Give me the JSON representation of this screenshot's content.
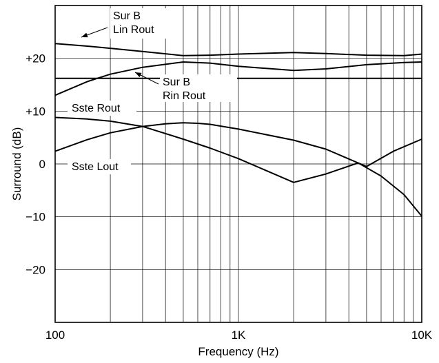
{
  "chart_data": {
    "type": "line",
    "xlabel": "Frequency (Hz)",
    "ylabel": "Surround (dB)",
    "x_scale": "log",
    "xlim": [
      100,
      10000
    ],
    "ylim": [
      -30,
      30
    ],
    "x_ticks": [
      {
        "value": 100,
        "label": "100"
      },
      {
        "value": 1000,
        "label": "1K"
      },
      {
        "value": 10000,
        "label": "10K"
      }
    ],
    "y_ticks": [
      {
        "value": 20,
        "label": "+20"
      },
      {
        "value": 10,
        "label": "+10"
      },
      {
        "value": 0,
        "label": "0"
      },
      {
        "value": -10,
        "label": "−10"
      },
      {
        "value": -20,
        "label": "−20"
      }
    ],
    "grid": true,
    "series": [
      {
        "name": "Sur B Lin Rout",
        "x": [
          100,
          150,
          200,
          300,
          500,
          700,
          1000,
          2000,
          3000,
          5000,
          8000,
          10000
        ],
        "y": [
          22.8,
          22.3,
          21.9,
          21.3,
          20.5,
          20.6,
          20.8,
          21.1,
          20.9,
          20.6,
          20.5,
          20.8
        ]
      },
      {
        "name": "Sur B Rin Rout",
        "x": [
          100,
          150,
          200,
          300,
          500,
          700,
          1000,
          2000,
          3000,
          5000,
          8000,
          10000
        ],
        "y": [
          13.0,
          15.6,
          17.0,
          18.3,
          19.3,
          19.1,
          18.5,
          17.7,
          18.0,
          18.8,
          19.2,
          19.3
        ]
      },
      {
        "name": "",
        "x": [
          100,
          10000
        ],
        "y": [
          16.2,
          16.2
        ]
      },
      {
        "name": "Sste Rout",
        "x": [
          100,
          150,
          200,
          300,
          500,
          700,
          1000,
          2000,
          3000,
          4500,
          6000,
          8000,
          10000
        ],
        "y": [
          8.8,
          8.5,
          8.1,
          7.1,
          4.7,
          3.0,
          1.0,
          -3.5,
          -1.9,
          0.2,
          -2.3,
          -5.8,
          -9.9
        ]
      },
      {
        "name": "Sste Lout",
        "x": [
          100,
          150,
          200,
          300,
          400,
          500,
          600,
          700,
          1000,
          2000,
          3000,
          5000,
          7000,
          10000
        ],
        "y": [
          2.4,
          4.6,
          5.9,
          7.1,
          7.6,
          7.8,
          7.7,
          7.5,
          6.6,
          4.5,
          2.8,
          -0.5,
          2.4,
          4.7
        ]
      }
    ],
    "annotations": [
      {
        "lines": [
          "Sur B",
          "Lin Rout"
        ]
      },
      {
        "lines": [
          "Sur B",
          "Rin Rout"
        ]
      },
      {
        "lines": [
          "Sste Rout"
        ]
      },
      {
        "lines": [
          "Sste Lout"
        ]
      }
    ]
  }
}
